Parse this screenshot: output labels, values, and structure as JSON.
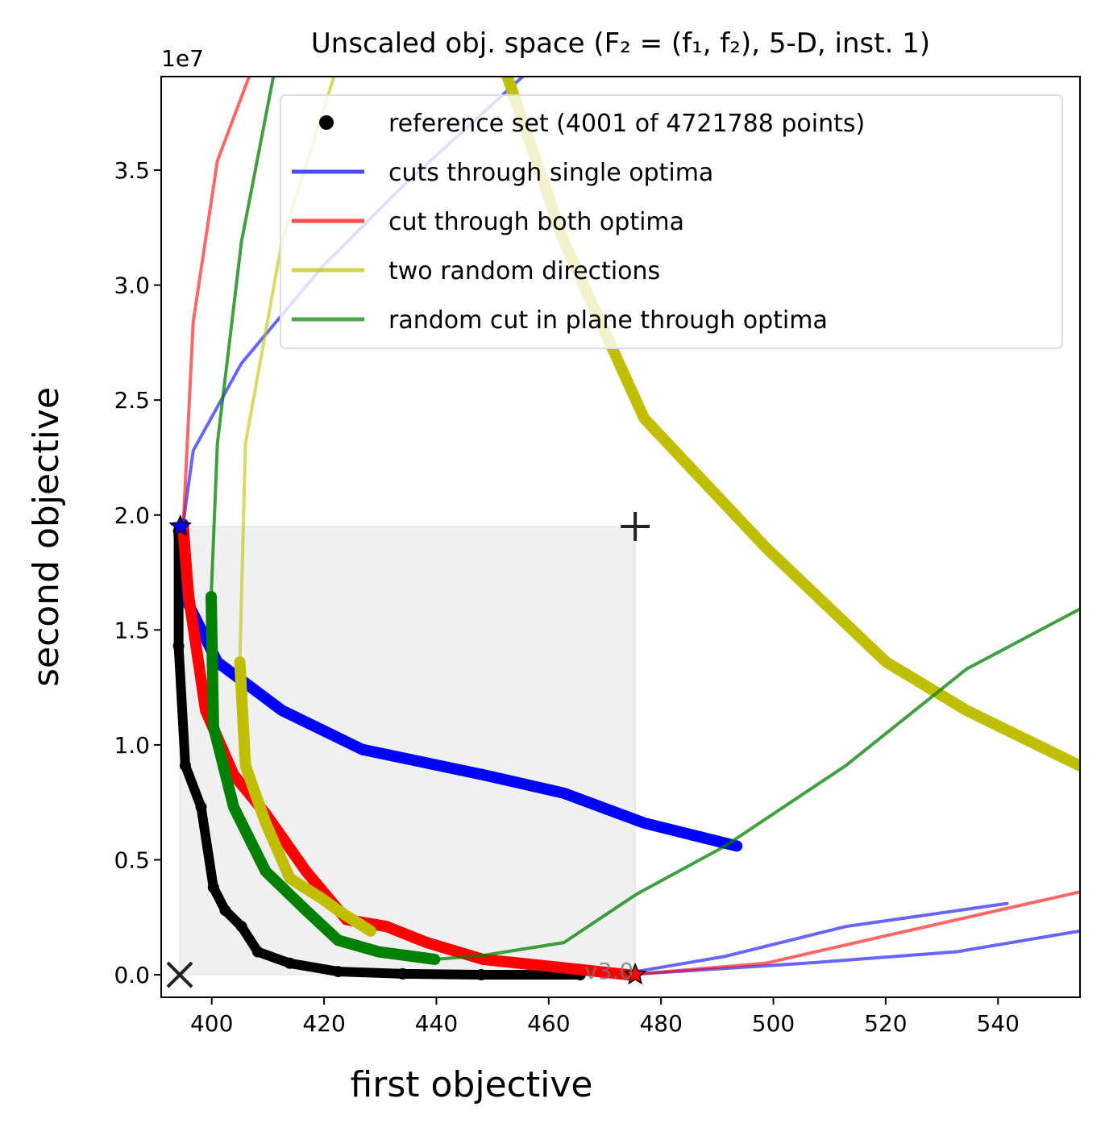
{
  "chart_data": {
    "type": "line",
    "title": "Unscaled obj. space (F₂ = (f₁, f₂), 5-D, inst. 1)",
    "xlabel": "first objective",
    "ylabel": "second objective",
    "y_offset_label": "1e7",
    "annotation": "v3.0",
    "xlim": [
      391,
      554.6
    ],
    "ylim": [
      -0.098,
      3.907
    ],
    "xticks": [
      400,
      420,
      440,
      460,
      480,
      500,
      520,
      540
    ],
    "yticks": [
      {
        "value": 0,
        "label": "0.0"
      },
      0.5,
      {
        "value": 1,
        "label": "1.0"
      },
      1.5,
      {
        "value": 2,
        "label": "2.0"
      },
      2.5,
      {
        "value": 3,
        "label": "3.0"
      },
      3.5
    ],
    "legend": "upper right",
    "series": [
      {
        "name": "reference set (4001 of 4721788 points)",
        "color": "#000000",
        "marker": "dot",
        "x": [
          394.1,
          394.1,
          395.3,
          398.1,
          400.3,
          402.4,
          405.3,
          408.2,
          413.9,
          422.5,
          434,
          448,
          465.6
        ],
        "values": [
          1.93,
          1.43,
          0.91,
          0.73,
          0.38,
          0.28,
          0.21,
          0.1,
          0.05,
          0.014,
          0.004,
          0,
          0
        ]
      },
      {
        "name": "cuts through single optima",
        "color": "#0000ff",
        "x": [
          394.9,
          395.9,
          401,
          412.5,
          426.8,
          448.3,
          462.7,
          477,
          493.5,
          null,
          394.9,
          396.7,
          405.3,
          419.7,
          434,
          455.5,
          null,
          475.6,
          491.4,
          512.9,
          541.6,
          null,
          475.6,
          505.7,
          532.6,
          554.5
        ],
        "values": [
          1.96,
          1.61,
          1.36,
          1.15,
          0.98,
          0.87,
          0.79,
          0.66,
          0.56,
          null,
          1.96,
          2.28,
          2.66,
          3.08,
          3.43,
          3.91,
          null,
          0.014,
          0.08,
          0.21,
          0.31,
          null,
          0.003,
          0.05,
          0.1,
          0.19
        ]
      },
      {
        "name": "cut through both optima",
        "color": "#ff0000",
        "x": [
          394.9,
          395.9,
          398.9,
          403.9,
          409.6,
          416.8,
          424,
          431.1,
          438.3,
          448.3,
          462.7,
          474.2,
          null,
          394.9,
          396.7,
          401,
          406.7,
          null,
          474.2,
          498.6,
          520.1,
          554.5
        ],
        "values": [
          1.94,
          1.645,
          1.15,
          0.87,
          0.7,
          0.45,
          0.24,
          0.21,
          0.14,
          0.067,
          0.03,
          0,
          null,
          1.94,
          2.84,
          3.54,
          3.91,
          null,
          0,
          0.05,
          0.17,
          0.36
        ]
      },
      {
        "name": "two random directions",
        "color": "#bfbf00",
        "x": [
          405,
          406,
          409.6,
          413.9,
          419.7,
          422.5,
          428.3,
          null,
          405,
          406,
          412.5,
          421.8,
          null,
          452.6,
          462.7,
          477,
          498.6,
          520.1,
          534.4,
          554.5
        ],
        "values": [
          1.36,
          0.91,
          0.66,
          0.42,
          0.33,
          0.28,
          0.19,
          null,
          1.36,
          2.31,
          3.19,
          3.91,
          null,
          3.91,
          3.19,
          2.42,
          1.86,
          1.36,
          1.15,
          0.91
        ]
      },
      {
        "name": "random cut in plane through optima",
        "color": "#008000",
        "x": [
          399.9,
          400.3,
          403.9,
          409.6,
          416.8,
          422.5,
          429.7,
          439.7,
          null,
          399.9,
          401,
          405.3,
          411,
          null,
          439.7,
          448.3,
          462.7,
          475.6,
          491.4,
          512.9,
          534.4,
          554.5
        ],
        "values": [
          1.645,
          1.08,
          0.73,
          0.45,
          0.28,
          0.15,
          0.1,
          0.067,
          null,
          1.645,
          2.31,
          3.19,
          3.91,
          null,
          0.067,
          0.084,
          0.14,
          0.35,
          0.56,
          0.91,
          1.33,
          1.59
        ]
      }
    ],
    "points": [
      {
        "x": 394.3,
        "y": 0,
        "symbol": "x"
      },
      {
        "x": 475.4,
        "y": 1.95,
        "symbol": "+"
      },
      {
        "x": 394.4,
        "y": 1.95,
        "symbol": "blue-star"
      },
      {
        "x": 475.4,
        "y": 0,
        "symbol": "red-star"
      }
    ]
  }
}
